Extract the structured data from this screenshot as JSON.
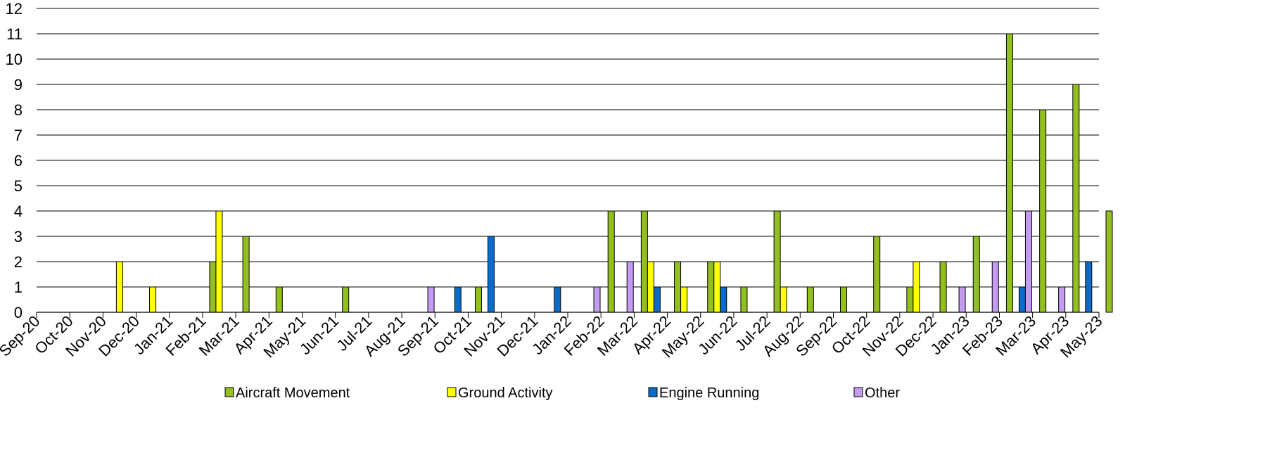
{
  "chart_data": {
    "type": "bar",
    "title": "",
    "xlabel": "",
    "ylabel": "",
    "ylim": [
      0,
      12
    ],
    "yticks": [
      "0",
      "1",
      "2",
      "3",
      "4",
      "5",
      "6",
      "7",
      "8",
      "9",
      "10",
      "11",
      "12"
    ],
    "grid": true,
    "legend_position": "bottom",
    "categories": [
      "Sep-20",
      "Oct-20",
      "Nov-20",
      "Dec-20",
      "Jan-21",
      "Feb-21",
      "Mar-21",
      "Apr-21",
      "May-21",
      "Jun-21",
      "Jul-21",
      "Aug-21",
      "Sep-21",
      "Oct-21",
      "Nov-21",
      "Dec-21",
      "Jan-22",
      "Feb-22",
      "Mar-22",
      "Apr-22",
      "May-22",
      "Jun-22",
      "Jul-22",
      "Aug-22",
      "Sep-22",
      "Oct-22",
      "Nov-22",
      "Dec-22",
      "Jan-23",
      "Feb-23",
      "Mar-23",
      "Apr-23",
      "May-23"
    ],
    "series": [
      {
        "name": "Aircraft Movement",
        "color": "#92C01F",
        "values": [
          0,
          0,
          0,
          0,
          0,
          2,
          3,
          1,
          0,
          1,
          0,
          0,
          0,
          1,
          0,
          0,
          0,
          4,
          4,
          2,
          2,
          1,
          4,
          1,
          1,
          3,
          1,
          2,
          3,
          11,
          8,
          9,
          4
        ]
      },
      {
        "name": "Ground Activity",
        "color": "#FFFF00",
        "values": [
          0,
          0,
          2,
          1,
          0,
          4,
          0,
          0,
          0,
          0,
          0,
          0,
          0,
          0,
          0,
          0,
          0,
          0,
          2,
          1,
          2,
          0,
          1,
          0,
          0,
          0,
          2,
          0,
          0,
          0,
          0,
          0,
          0
        ]
      },
      {
        "name": "Engine Running",
        "color": "#0A6BC9",
        "values": [
          0,
          0,
          0,
          0,
          0,
          0,
          0,
          0,
          0,
          0,
          0,
          0,
          1,
          3,
          0,
          1,
          0,
          0,
          1,
          0,
          1,
          0,
          0,
          0,
          0,
          0,
          0,
          0,
          0,
          1,
          0,
          2,
          0
        ]
      },
      {
        "name": "Other",
        "color": "#C39BF2",
        "values": [
          0,
          0,
          0,
          0,
          0,
          0,
          0,
          0,
          0,
          0,
          0,
          1,
          0,
          0,
          0,
          0,
          1,
          2,
          0,
          0,
          0,
          0,
          0,
          0,
          0,
          0,
          0,
          1,
          2,
          4,
          1,
          0,
          0
        ]
      }
    ]
  }
}
